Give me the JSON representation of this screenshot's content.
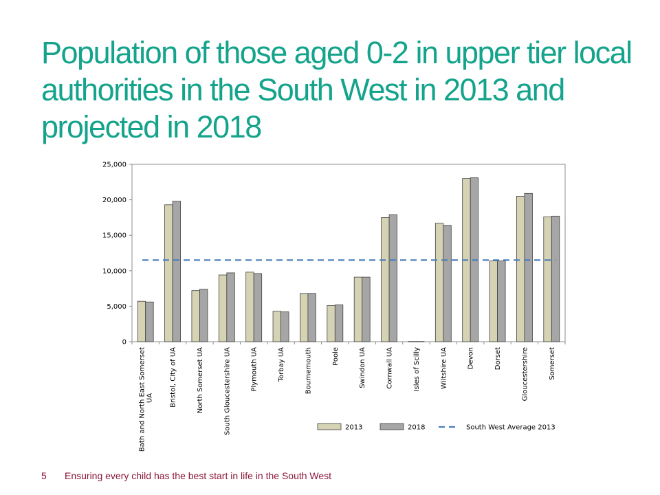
{
  "slide": {
    "title": "Population of those aged 0-2 in upper tier local authorities in the South West in 2013 and projected in 2018",
    "page_number": "5",
    "footer_text": "Ensuring every child has the best start in life in the South West"
  },
  "chart_data": {
    "type": "bar",
    "title": "",
    "xlabel": "",
    "ylabel": "",
    "ylim": [
      0,
      25000
    ],
    "yticks": [
      0,
      5000,
      10000,
      15000,
      20000,
      25000
    ],
    "ytick_labels": [
      "0",
      "5,000",
      "10,000",
      "15,000",
      "20,000",
      "25,000"
    ],
    "grid": false,
    "legend_position": "bottom-right",
    "categories": [
      "Bath and North East Somerset UA",
      "Bristol, City of UA",
      "North Somerset UA",
      "South Gloucestershire UA",
      "Plymouth UA",
      "Torbay UA",
      "Bournemouth",
      "Poole",
      "Swindon UA",
      "Cornwall UA",
      "Isles of Scilly",
      "Wiltshire UA",
      "Devon",
      "Dorset",
      "Gloucestershire",
      "Somerset"
    ],
    "category_label_lines": [
      [
        "Bath and North East Somerset",
        "UA"
      ],
      [
        "Bristol, City of UA"
      ],
      [
        "North Somerset UA"
      ],
      [
        "South Gloucestershire UA"
      ],
      [
        "Plymouth UA"
      ],
      [
        "Torbay UA"
      ],
      [
        "Bournemouth"
      ],
      [
        "Poole"
      ],
      [
        "Swindon UA"
      ],
      [
        "Cornwall UA"
      ],
      [
        "Isles of Scilly"
      ],
      [
        "Wiltshire UA"
      ],
      [
        "Devon"
      ],
      [
        "Dorset"
      ],
      [
        "Gloucestershire"
      ],
      [
        "Somerset"
      ]
    ],
    "series": [
      {
        "name": "2013",
        "color": "#d6d3b4",
        "values": [
          5700,
          19300,
          7200,
          9400,
          9800,
          4300,
          6800,
          5100,
          9100,
          17500,
          30,
          16700,
          23000,
          11400,
          20500,
          17600
        ]
      },
      {
        "name": "2018",
        "color": "#a6a6a6",
        "values": [
          5600,
          19800,
          7400,
          9700,
          9600,
          4200,
          6800,
          5200,
          9100,
          17900,
          30,
          16400,
          23100,
          11400,
          20900,
          17700
        ]
      }
    ],
    "reference_line": {
      "name": "South West Average 2013",
      "value": 11500,
      "color": "#4a7ebb",
      "style": "dashed"
    }
  }
}
